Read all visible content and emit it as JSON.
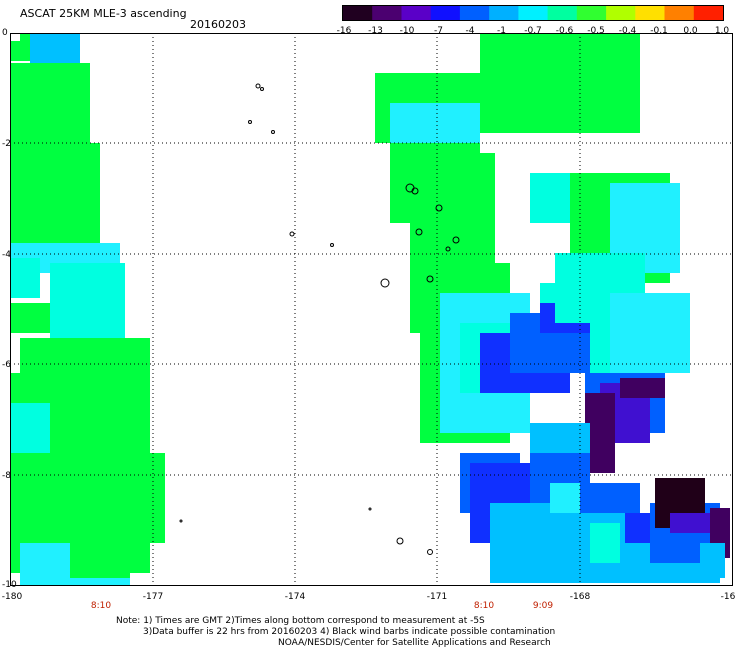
{
  "header": {
    "title": "ASCAT 25KM MLE-3 ascending",
    "date": "20160203"
  },
  "colorbar": {
    "labels": [
      "-16",
      "-13",
      "-10",
      "-7",
      "-4",
      "-1",
      "-0.7",
      "-0.6",
      "-0.5",
      "-0.4",
      "-0.1",
      "0.0",
      "1.0"
    ],
    "colors": [
      "#200020",
      "#4b0070",
      "#5a00c8",
      "#1010ff",
      "#0060ff",
      "#00b0ff",
      "#00f0ff",
      "#00ffa0",
      "#30ff30",
      "#b0ff00",
      "#ffe000",
      "#ff8000",
      "#ff2000"
    ]
  },
  "axes": {
    "y_labels": [
      "0",
      "-2",
      "-4",
      "-6",
      "-8",
      "-10"
    ],
    "x_labels": [
      "-180",
      "-177",
      "-174",
      "-171",
      "-168",
      "-16"
    ],
    "time_labels": [
      "8:10",
      "8:10",
      "9:09"
    ]
  },
  "notes": {
    "line1": "Note: 1) Times are GMT 2)Times along bottom correspond to measurement at -5S",
    "line2": "3)Data buffer is 22 hrs from 20160203 4) Black wind barbs indicate possible contamination",
    "line3": "NOAA/NESDIS/Center for Satellite Applications and Research"
  },
  "palette": {
    "green": "#00ff40",
    "lightgreen": "#20ff20",
    "cyan": "#00ffe0",
    "lightcyan": "#20f0ff",
    "skyblue": "#00c0ff",
    "blue": "#0060ff",
    "deepblue": "#1030ff",
    "violet": "#4010d0",
    "purple": "#400060",
    "darkpurple": "#200018"
  }
}
